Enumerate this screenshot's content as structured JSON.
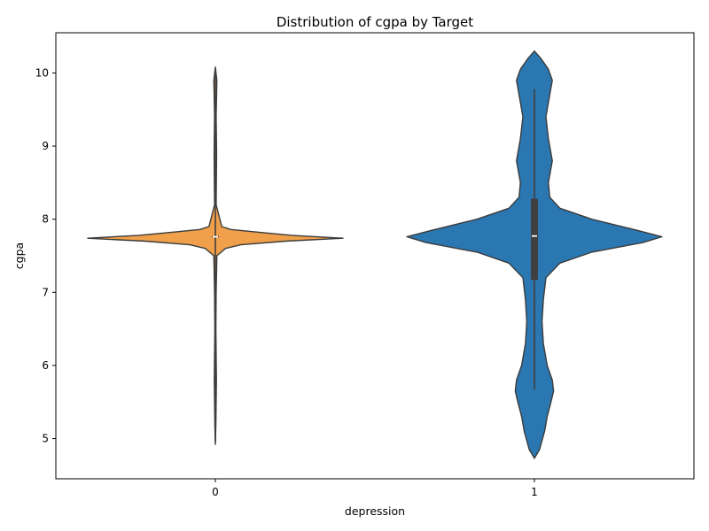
{
  "chart_data": {
    "type": "violin",
    "title": "Distribution of cgpa by Target",
    "xlabel": "depression",
    "ylabel": "cgpa",
    "ylim": [
      4.45,
      10.55
    ],
    "yticks": [
      5,
      6,
      7,
      8,
      9,
      10
    ],
    "grid": false,
    "legend": "none",
    "categories": [
      "0",
      "1"
    ],
    "series": [
      {
        "category": "0",
        "color": "#f0a04b",
        "min": 4.95,
        "q1": 7.76,
        "median": 7.76,
        "q3": 7.77,
        "max": 10.05,
        "profile": [
          [
            4.92,
            0
          ],
          [
            5.2,
            0.004
          ],
          [
            5.8,
            0.008
          ],
          [
            6.5,
            0.004
          ],
          [
            7.0,
            0.006
          ],
          [
            7.5,
            0.012
          ],
          [
            7.6,
            0.08
          ],
          [
            7.65,
            0.2
          ],
          [
            7.7,
            0.55
          ],
          [
            7.74,
            1.0
          ],
          [
            7.78,
            0.6
          ],
          [
            7.82,
            0.35
          ],
          [
            7.86,
            0.12
          ],
          [
            7.9,
            0.05
          ],
          [
            8.2,
            0.006
          ],
          [
            8.9,
            0.01
          ],
          [
            9.4,
            0.006
          ],
          [
            9.9,
            0.012
          ],
          [
            10.08,
            0
          ]
        ]
      },
      {
        "category": "1",
        "color": "#2b77b2",
        "min": 5.67,
        "q1": 7.17,
        "median": 7.77,
        "q3": 8.28,
        "max": 9.78,
        "profile": [
          [
            4.73,
            0
          ],
          [
            4.85,
            0.04
          ],
          [
            5.1,
            0.08
          ],
          [
            5.3,
            0.1
          ],
          [
            5.5,
            0.13
          ],
          [
            5.65,
            0.15
          ],
          [
            5.8,
            0.14
          ],
          [
            6.0,
            0.1
          ],
          [
            6.3,
            0.07
          ],
          [
            6.6,
            0.06
          ],
          [
            6.9,
            0.07
          ],
          [
            7.2,
            0.09
          ],
          [
            7.4,
            0.2
          ],
          [
            7.55,
            0.45
          ],
          [
            7.68,
            0.85
          ],
          [
            7.76,
            1.0
          ],
          [
            7.85,
            0.8
          ],
          [
            8.0,
            0.45
          ],
          [
            8.15,
            0.2
          ],
          [
            8.3,
            0.12
          ],
          [
            8.5,
            0.11
          ],
          [
            8.8,
            0.14
          ],
          [
            9.1,
            0.11
          ],
          [
            9.4,
            0.09
          ],
          [
            9.7,
            0.12
          ],
          [
            9.9,
            0.14
          ],
          [
            10.05,
            0.11
          ],
          [
            10.2,
            0.05
          ],
          [
            10.3,
            0
          ]
        ]
      }
    ]
  }
}
